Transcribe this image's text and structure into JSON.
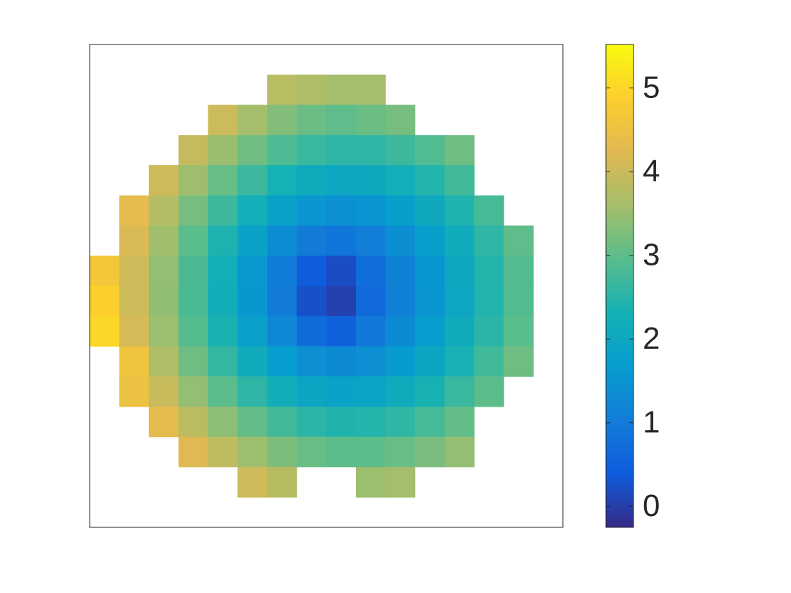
{
  "chart_data": {
    "type": "heatmap",
    "colormap": "parula",
    "clim": [
      -0.25,
      5.52
    ],
    "colorbar_ticks": [
      0,
      1,
      2,
      3,
      4,
      5
    ],
    "z": [
      [
        null,
        null,
        null,
        null,
        null,
        null,
        null,
        null,
        null,
        null,
        null,
        null,
        null,
        null,
        null,
        null
      ],
      [
        null,
        null,
        null,
        null,
        null,
        null,
        3.8,
        3.7,
        3.6,
        3.6,
        null,
        null,
        null,
        null,
        null,
        null
      ],
      [
        null,
        null,
        null,
        null,
        4.0,
        3.6,
        3.3,
        3.1,
        3.0,
        3.1,
        3.2,
        null,
        null,
        null,
        null,
        null
      ],
      [
        null,
        null,
        null,
        3.93,
        3.5,
        3.14,
        2.84,
        2.65,
        2.55,
        2.57,
        2.69,
        2.88,
        3.13,
        null,
        null,
        null
      ],
      [
        null,
        null,
        4.05,
        3.54,
        3.07,
        2.67,
        2.32,
        2.1,
        2.0,
        2.05,
        2.21,
        2.44,
        2.74,
        null,
        null,
        null
      ],
      [
        null,
        4.33,
        3.77,
        3.21,
        2.69,
        2.23,
        1.82,
        1.55,
        1.45,
        1.53,
        1.76,
        2.05,
        2.4,
        2.78,
        null,
        null
      ],
      [
        null,
        4.15,
        3.56,
        2.96,
        2.39,
        1.86,
        1.36,
        1.0,
        0.9,
        1.06,
        1.38,
        1.75,
        2.15,
        2.57,
        3.0,
        null
      ],
      [
        4.66,
        4.05,
        3.45,
        2.82,
        2.22,
        1.62,
        1.03,
        0.4,
        0.2,
        0.72,
        1.14,
        1.56,
        2.01,
        2.45,
        2.9,
        null
      ],
      [
        4.9,
        4.04,
        3.43,
        2.81,
        2.2,
        1.6,
        0.99,
        0.25,
        0.05,
        0.67,
        1.11,
        1.55,
        1.99,
        2.44,
        2.89,
        null
      ],
      [
        5.0,
        4.12,
        3.52,
        2.92,
        2.34,
        1.79,
        1.26,
        0.7,
        0.5,
        0.96,
        1.3,
        1.69,
        2.11,
        2.53,
        2.96,
        null
      ],
      [
        null,
        4.6,
        3.7,
        3.14,
        2.61,
        2.12,
        1.69,
        1.4,
        1.31,
        1.4,
        1.65,
        1.96,
        2.33,
        2.72,
        3.13,
        null
      ],
      [
        null,
        4.51,
        3.97,
        3.45,
        2.97,
        2.55,
        2.19,
        1.96,
        1.86,
        1.92,
        2.09,
        2.34,
        2.65,
        2.99,
        null,
        null
      ],
      [
        null,
        null,
        4.31,
        3.83,
        3.39,
        3.03,
        2.72,
        2.52,
        2.42,
        2.45,
        2.57,
        2.77,
        3.03,
        null,
        null,
        null
      ],
      [
        null,
        null,
        null,
        4.24,
        3.86,
        3.53,
        3.26,
        3.08,
        2.98,
        2.99,
        3.08,
        3.23,
        3.45,
        null,
        null,
        null
      ],
      [
        null,
        null,
        null,
        null,
        null,
        4.04,
        3.79,
        null,
        null,
        3.52,
        3.59,
        null,
        null,
        null,
        null,
        null
      ],
      [
        null,
        null,
        null,
        null,
        null,
        null,
        null,
        null,
        null,
        null,
        null,
        null,
        null,
        null,
        null,
        null
      ]
    ]
  }
}
